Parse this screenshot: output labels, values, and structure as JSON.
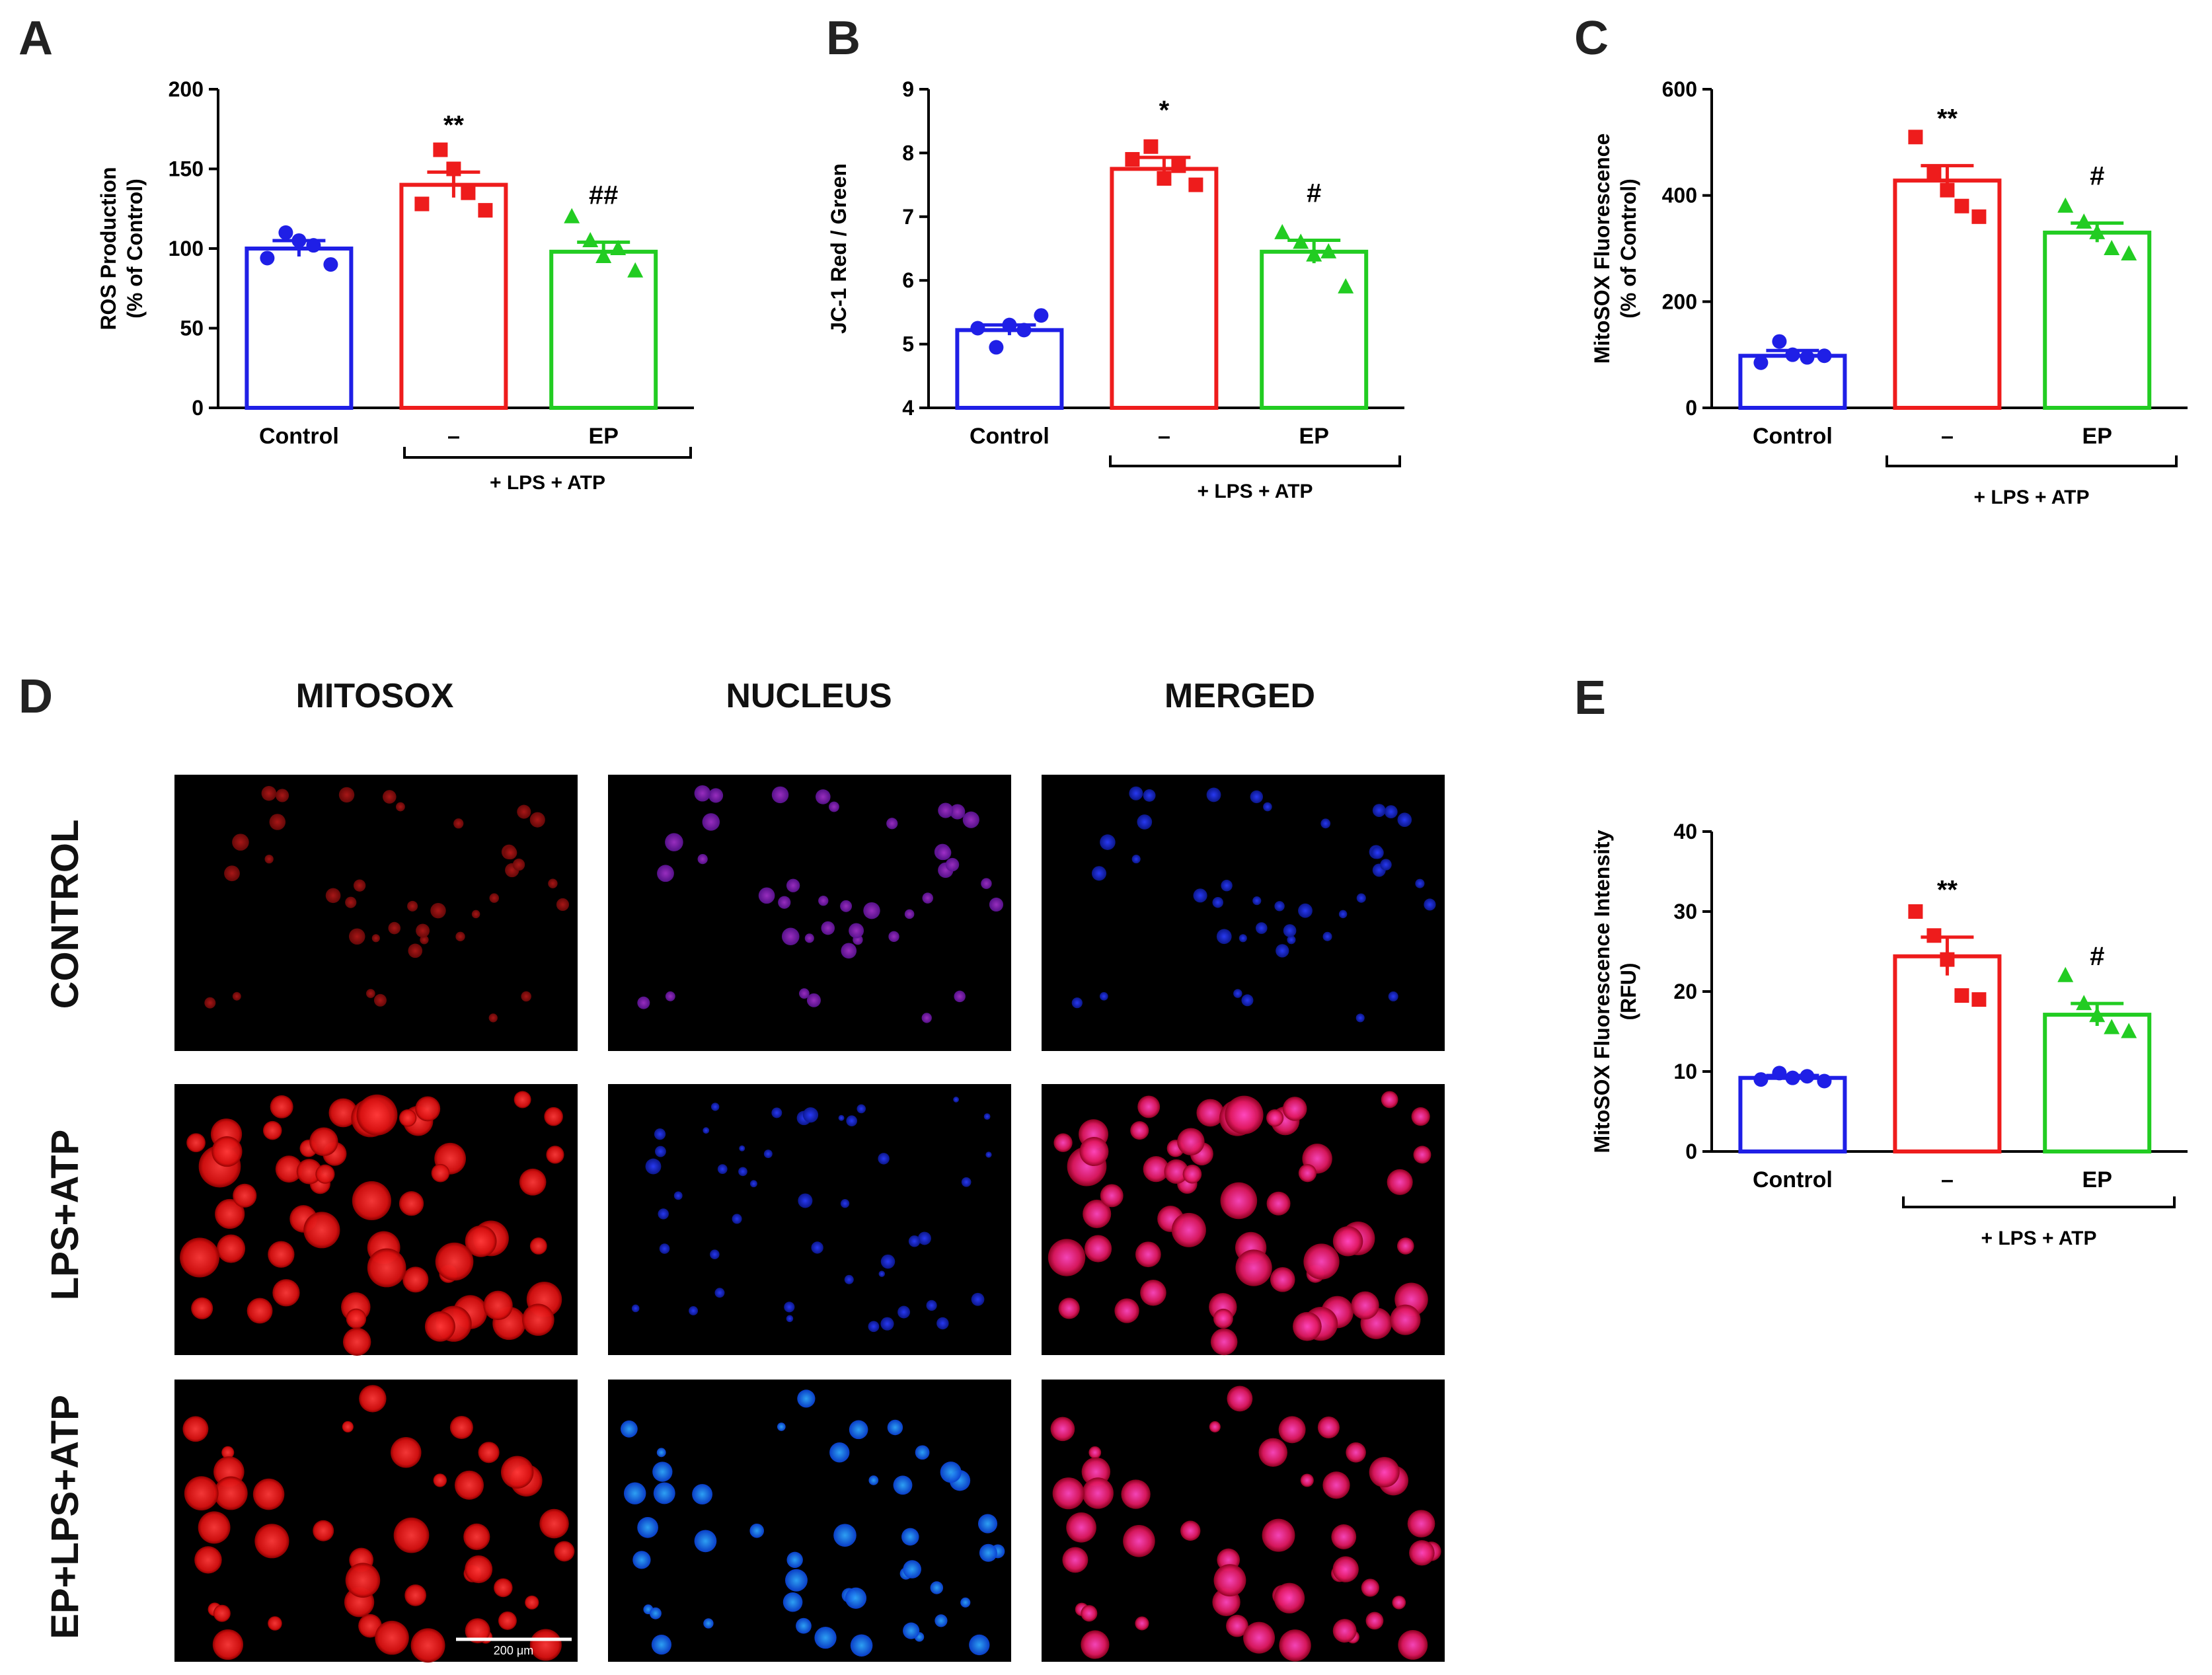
{
  "colors": {
    "control": "#1f1fe6",
    "lps": "#ee1c1c",
    "ep": "#22cc22",
    "axis": "#000000"
  },
  "chart_data": [
    {
      "panel": "A",
      "type": "bar",
      "categories": [
        "Control",
        "–",
        "EP"
      ],
      "group_label": "+ LPS + ATP",
      "ylabel": [
        "ROS Production",
        "(% of Control)"
      ],
      "ylim": [
        0,
        200
      ],
      "yticks": [
        0,
        50,
        100,
        150,
        200
      ],
      "values": [
        100,
        140,
        98
      ],
      "errors": [
        5,
        8,
        6
      ],
      "points": [
        [
          94,
          110,
          105,
          102,
          90
        ],
        [
          128,
          162,
          150,
          135,
          124
        ],
        [
          120,
          105,
          95,
          100,
          86
        ]
      ],
      "significance": [
        "",
        "**",
        "##"
      ]
    },
    {
      "panel": "B",
      "type": "bar",
      "categories": [
        "Control",
        "–",
        "EP"
      ],
      "group_label": "+ LPS + ATP",
      "ylabel": [
        "JC-1 Red / Green"
      ],
      "ylim": [
        4,
        9
      ],
      "yticks": [
        4,
        5,
        6,
        7,
        8,
        9
      ],
      "values": [
        5.22,
        7.75,
        6.45
      ],
      "errors": [
        0.08,
        0.18,
        0.18
      ],
      "points": [
        [
          5.25,
          4.95,
          5.3,
          5.22,
          5.45
        ],
        [
          7.9,
          8.1,
          7.6,
          7.8,
          7.5
        ],
        [
          6.75,
          6.6,
          6.4,
          6.45,
          5.9
        ]
      ],
      "significance": [
        "",
        "*",
        "#"
      ]
    },
    {
      "panel": "C",
      "type": "bar",
      "categories": [
        "Control",
        "–",
        "EP"
      ],
      "group_label": "+ LPS + ATP",
      "ylabel": [
        "MitoSOX Fluorescence",
        "(% of Control)"
      ],
      "ylim": [
        0,
        600
      ],
      "yticks": [
        0,
        200,
        400,
        600
      ],
      "values": [
        98,
        428,
        330
      ],
      "errors": [
        10,
        28,
        18
      ],
      "points": [
        [
          85,
          125,
          100,
          95,
          98
        ],
        [
          510,
          445,
          410,
          380,
          360
        ],
        [
          380,
          350,
          330,
          300,
          290
        ]
      ],
      "significance": [
        "",
        "**",
        "#"
      ]
    },
    {
      "panel": "E",
      "type": "bar",
      "categories": [
        "Control",
        "–",
        "EP"
      ],
      "group_label": "+ LPS + ATP",
      "ylabel": [
        "MitoSOX Fluorescence Intensity",
        "(RFU)"
      ],
      "ylim": [
        0,
        40
      ],
      "yticks": [
        0,
        10,
        20,
        30,
        40
      ],
      "values": [
        9.2,
        24.4,
        17.1
      ],
      "errors": [
        0.3,
        2.4,
        1.4
      ],
      "points": [
        [
          9.0,
          9.8,
          9.2,
          9.4,
          8.8
        ],
        [
          30,
          27,
          24,
          19.5,
          19
        ],
        [
          22,
          18.5,
          17,
          15.5,
          15
        ]
      ],
      "significance": [
        "",
        "**",
        "#"
      ]
    }
  ],
  "micrographs": {
    "panel_letter": "D",
    "columns": [
      "MITOSOX",
      "NUCLEUS",
      "MERGED"
    ],
    "rows": [
      "CONTROL",
      "LPS+ATP",
      "EP+LPS+ATP"
    ],
    "scale_bar": "200 μm"
  }
}
